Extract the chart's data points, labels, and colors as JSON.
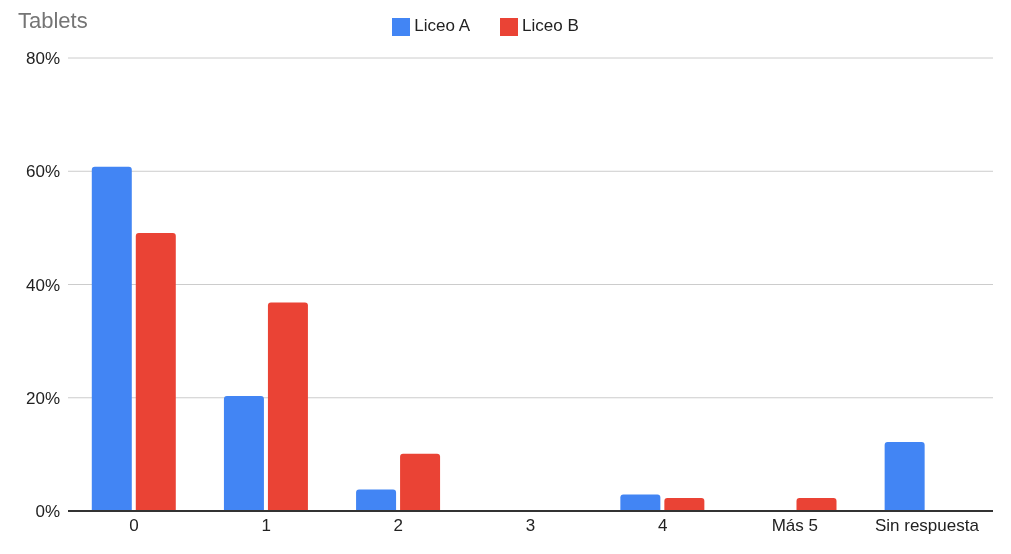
{
  "chart_data": {
    "type": "bar",
    "title": "Tablets",
    "categories": [
      "0",
      "1",
      "2",
      "3",
      "4",
      "Más 5",
      "Sin respuesta"
    ],
    "series": [
      {
        "name": "Liceo A",
        "color": "#4285f4",
        "values": [
          60.8,
          20.3,
          3.8,
          0,
          2.9,
          0,
          12.2
        ]
      },
      {
        "name": "Liceo B",
        "color": "#ea4335",
        "values": [
          49.1,
          36.8,
          10.1,
          0,
          2.3,
          2.3,
          0
        ]
      }
    ],
    "ylim": [
      0,
      80
    ],
    "yticks": [
      {
        "value": 0,
        "label": "0%"
      },
      {
        "value": 20,
        "label": "20%"
      },
      {
        "value": 40,
        "label": "40%"
      },
      {
        "value": 60,
        "label": "60%"
      },
      {
        "value": 80,
        "label": "80%"
      }
    ],
    "grid": "y",
    "legend": "top"
  }
}
